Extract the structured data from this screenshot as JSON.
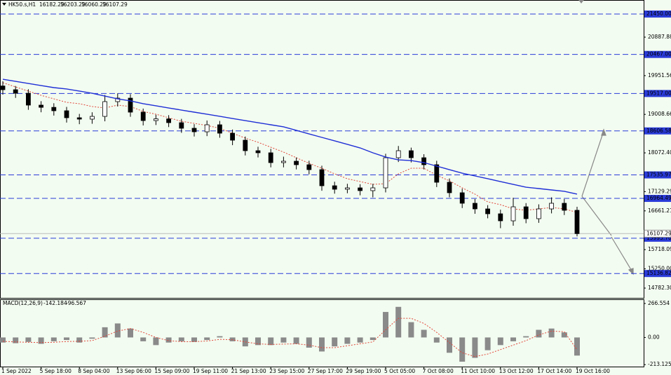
{
  "chart_data": {
    "type": "candlestick",
    "title": "HK50.s,H1",
    "last_ohlc": [
      16182.29,
      16203.29,
      16060.29,
      16107.29
    ],
    "categories": [
      "1 Sep 2022",
      null,
      null,
      "5 Sep 18:00",
      null,
      null,
      "8 Sep 04:00",
      null,
      null,
      "13 Sep 06:00",
      null,
      null,
      "15 Sep 09:00",
      null,
      null,
      "19 Sep 11:00",
      null,
      null,
      "21 Sep 13:00",
      null,
      null,
      "23 Sep 15:00",
      null,
      null,
      "27 Sep 17:00",
      null,
      null,
      "29 Sep 19:00",
      null,
      null,
      "5 Oct 05:00",
      null,
      null,
      "7 Oct 08:00",
      null,
      null,
      "11 Oct 10:00",
      null,
      null,
      "13 Oct 12:00",
      null,
      null,
      "17 Oct 14:00",
      null,
      null,
      "19 Oct 16:00"
    ],
    "open": [
      19700,
      19609,
      19523,
      19234,
      19180,
      19097,
      18927,
      18893,
      18960,
      19319,
      19404,
      19063,
      18858,
      18900,
      18807,
      18671,
      18585,
      18756,
      18551,
      18381,
      18125,
      18074,
      17835,
      17869,
      17784,
      17664,
      17272,
      17187,
      17221,
      17153,
      17221,
      17954,
      18125,
      17954,
      17784,
      17357,
      17102,
      16846,
      16709,
      16590,
      16419,
      16760,
      16471,
      16709,
      16846,
      16675
    ],
    "high": [
      19815,
      19700,
      19620,
      19330,
      19280,
      19190,
      19020,
      19060,
      19480,
      19520,
      19500,
      19150,
      19000,
      18990,
      18900,
      18770,
      18860,
      18850,
      18640,
      18470,
      18220,
      18170,
      17980,
      17960,
      17880,
      17760,
      17370,
      17320,
      17310,
      17320,
      18050,
      18240,
      18200,
      18040,
      17880,
      17450,
      17200,
      16950,
      16800,
      16690,
      16980,
      16850,
      16820,
      16990,
      16950,
      16760
    ],
    "low": [
      19490,
      19410,
      19120,
      19060,
      18980,
      18810,
      18770,
      18780,
      18840,
      19200,
      18950,
      18740,
      18750,
      18700,
      18560,
      18470,
      18480,
      18440,
      18260,
      18010,
      17960,
      17720,
      17720,
      17670,
      17550,
      17150,
      17080,
      17090,
      17040,
      16990,
      17110,
      17850,
      17840,
      17670,
      17240,
      16990,
      16730,
      16590,
      16480,
      16240,
      16300,
      16360,
      16370,
      16600,
      16560,
      16040
    ],
    "close": [
      19609,
      19523,
      19234,
      19180,
      19097,
      18927,
      18893,
      18960,
      19319,
      19404,
      19063,
      18858,
      18900,
      18807,
      18671,
      18585,
      18756,
      18551,
      18381,
      18125,
      18074,
      17835,
      17869,
      17784,
      17664,
      17272,
      17187,
      17221,
      17153,
      17221,
      17954,
      18125,
      17954,
      17784,
      17357,
      17102,
      16846,
      16709,
      16590,
      16419,
      16760,
      16471,
      16709,
      16846,
      16675,
      16107.29
    ],
    "candle_color": "#000000",
    "ma_slow": {
      "color": "#1f2fd6",
      "values": [
        19864,
        19813,
        19762,
        19711,
        19660,
        19626,
        19575,
        19523,
        19455,
        19387,
        19336,
        19268,
        19217,
        19165,
        19114,
        19063,
        19012,
        18961,
        18909,
        18858,
        18807,
        18756,
        18705,
        18620,
        18534,
        18449,
        18364,
        18279,
        18193,
        18074,
        17971,
        17903,
        17886,
        17835,
        17750,
        17664,
        17579,
        17511,
        17443,
        17374,
        17306,
        17238,
        17204,
        17170,
        17136,
        17068
      ]
    },
    "ma_fast": {
      "color": "#e0473a",
      "values": [
        19779,
        19677,
        19575,
        19472,
        19387,
        19302,
        19268,
        19200,
        19165,
        19234,
        19200,
        19080,
        19012,
        18927,
        18841,
        18790,
        18739,
        18671,
        18551,
        18432,
        18330,
        18210,
        18091,
        17954,
        17818,
        17698,
        17562,
        17443,
        17374,
        17306,
        17323,
        17562,
        17698,
        17698,
        17528,
        17392,
        17221,
        17068,
        16880,
        16812,
        16709,
        16675,
        16709,
        16743,
        16709,
        16624
      ]
    },
    "levels": {
      "color": "#2a3bd8",
      "values": [
        21450,
        20467,
        19517,
        18606.58,
        17535.97,
        16964.49,
        15995.7,
        15136.82
      ],
      "value_labels": [
        "21450.00",
        "20467.00",
        "19517.00",
        "18606.58",
        "17535.97",
        "16964.49",
        "15995.70",
        "15136.82"
      ]
    },
    "ylim": [
      14543.5,
      21791.8
    ],
    "yticks": [
      {
        "value": 14782.3,
        "label": "14782.30"
      },
      {
        "value": 15250,
        "label": "15250.00"
      },
      15718.09,
      16661.21,
      17129.29,
      {
        "value": 18072.4,
        "label": "18072.40"
      },
      19008.66,
      19951.56,
      20887.88
    ],
    "indicator": {
      "type": "macd",
      "title": "MACD(12,26,9)",
      "main_value": -142.184,
      "signal_value": -96.567,
      "histogram": [
        -40,
        -45,
        -35,
        -50,
        -30,
        -20,
        -40,
        -10,
        80,
        110,
        70,
        -30,
        -60,
        -40,
        -30,
        -35,
        -20,
        10,
        -30,
        -70,
        -60,
        -60,
        -40,
        -50,
        -80,
        -110,
        -70,
        -50,
        -40,
        -20,
        200,
        240,
        120,
        60,
        -40,
        -120,
        -190,
        -160,
        -100,
        -60,
        -30,
        10,
        60,
        70,
        40,
        -142.184
      ],
      "signal": [
        -30,
        -35,
        -38,
        -40,
        -38,
        -32,
        -30,
        -25,
        10,
        50,
        70,
        40,
        0,
        -25,
        -33,
        -33,
        -28,
        -15,
        -18,
        -35,
        -50,
        -55,
        -52,
        -50,
        -60,
        -80,
        -80,
        -65,
        -50,
        -35,
        60,
        150,
        150,
        110,
        40,
        -40,
        -120,
        -150,
        -130,
        -95,
        -60,
        -25,
        20,
        50,
        45,
        -96.567
      ],
      "hist_color": "#8a8a8a",
      "signal_color": "#e0473a",
      "ylim": [
        -228.5,
        293.8
      ],
      "yticks": [
        -213.125,
        {
          "value": 0,
          "label": "0.00"
        },
        266.554
      ]
    }
  }
}
